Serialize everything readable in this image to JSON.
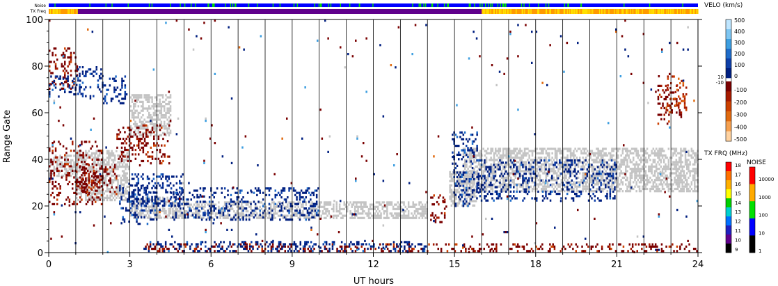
{
  "chart_data": {
    "type": "heatmap",
    "title": "",
    "xlabel": "UT hours",
    "ylabel": "Range Gate",
    "xlim": [
      0,
      24
    ],
    "ylim": [
      0,
      100
    ],
    "xticks": [
      "0",
      "3",
      "6",
      "9",
      "12",
      "15",
      "18",
      "21",
      "24"
    ],
    "yticks": [
      "0",
      "20",
      "40",
      "60",
      "80",
      "100"
    ],
    "top_bars": {
      "noise_label": "Noise",
      "txfreq_label": "TX Freq"
    },
    "velocity_colorbar": {
      "title": "VELO (km/s)",
      "labels_positive": [
        "500",
        "400",
        "300",
        "200",
        "100",
        "0"
      ],
      "labels_negative": [
        "-100",
        "-200",
        "-300",
        "-400",
        "-500"
      ],
      "mid_labels": [
        "10",
        "-10"
      ],
      "colors_positive": [
        "#bfe6ff",
        "#7ec6f2",
        "#3d9ee0",
        "#1f6cc9",
        "#0e3fa8",
        "#001f80"
      ],
      "colors_negative": [
        "#7a0000",
        "#a61a00",
        "#cc4000",
        "#e06a10",
        "#f5a050",
        "#ffd2a0"
      ],
      "ground_scatter_color": "#c4c4c4"
    },
    "txfreq_colorbar": {
      "title": "TX FRQ (MHz)",
      "labels": [
        "18",
        "17",
        "16",
        "15",
        "14",
        "13",
        "12",
        "11",
        "10",
        "9"
      ],
      "colors": [
        "#ff0000",
        "#ff7000",
        "#ffb000",
        "#ffff00",
        "#00d000",
        "#00d0d0",
        "#0070ff",
        "#2020c0",
        "#60008c",
        "#000000"
      ]
    },
    "noise_colorbar": {
      "title": "NOISE",
      "labels": [
        "10000",
        "1000",
        "100",
        "10",
        "1"
      ],
      "colors": [
        "#ff0000",
        "#ffaa00",
        "#00e000",
        "#0000ff",
        "#000000"
      ]
    },
    "regions": [
      {
        "kind": "ground",
        "t0": 0.0,
        "t1": 1.1,
        "g0": 32,
        "g1": 42
      },
      {
        "kind": "ground",
        "t0": 1.0,
        "t1": 3.0,
        "g0": 22,
        "g1": 44
      },
      {
        "kind": "ground",
        "t0": 3.0,
        "t1": 4.5,
        "g0": 14,
        "g1": 24
      },
      {
        "kind": "ground",
        "t0": 4.5,
        "t1": 14.0,
        "g0": 14,
        "g1": 22
      },
      {
        "kind": "ground",
        "t0": 3.0,
        "t1": 4.5,
        "g0": 50,
        "g1": 68
      },
      {
        "kind": "ground",
        "t0": 15.3,
        "t1": 24.0,
        "g0": 26,
        "g1": 45
      },
      {
        "kind": "ground",
        "t0": 14.8,
        "t1": 15.8,
        "g0": 20,
        "g1": 35
      },
      {
        "kind": "neg",
        "t0": 0.0,
        "t1": 2.0,
        "g0": 20,
        "g1": 48
      },
      {
        "kind": "neg",
        "t0": 1.0,
        "t1": 2.5,
        "g0": 25,
        "g1": 38
      },
      {
        "kind": "neg",
        "t0": 2.5,
        "t1": 4.5,
        "g0": 38,
        "g1": 55
      },
      {
        "kind": "neg",
        "t0": 3.5,
        "t1": 24.0,
        "g0": 0,
        "g1": 4
      },
      {
        "kind": "neg",
        "t0": 14.1,
        "t1": 14.7,
        "g0": 13,
        "g1": 25
      },
      {
        "kind": "neg",
        "t0": 22.5,
        "t1": 23.4,
        "g0": 55,
        "g1": 72
      },
      {
        "kind": "neg",
        "t0": 0.0,
        "t1": 1.1,
        "g0": 70,
        "g1": 88
      },
      {
        "kind": "pos",
        "t0": 0.0,
        "t1": 1.0,
        "g0": 66,
        "g1": 76
      },
      {
        "kind": "pos",
        "t0": 1.0,
        "t1": 2.0,
        "g0": 66,
        "g1": 80
      },
      {
        "kind": "pos",
        "t0": 2.0,
        "t1": 2.9,
        "g0": 64,
        "g1": 76
      },
      {
        "kind": "pos",
        "t0": 2.6,
        "t1": 4.0,
        "g0": 12,
        "g1": 30
      },
      {
        "kind": "pos",
        "t0": 3.0,
        "t1": 5.0,
        "g0": 20,
        "g1": 34
      },
      {
        "kind": "pos",
        "t0": 4.5,
        "t1": 10.0,
        "g0": 14,
        "g1": 28
      },
      {
        "kind": "pos",
        "t0": 14.9,
        "t1": 15.9,
        "g0": 20,
        "g1": 52
      },
      {
        "kind": "pos",
        "t0": 15.8,
        "t1": 21.0,
        "g0": 22,
        "g1": 40
      },
      {
        "kind": "pos",
        "t0": 3.5,
        "t1": 14.0,
        "g0": 0,
        "g1": 5
      },
      {
        "kind": "posTail",
        "t0": 22.8,
        "t1": 23.6,
        "g0": 60,
        "g1": 76
      },
      {
        "kind": "sparse",
        "t0": 0.0,
        "t1": 24.0,
        "g0": 0,
        "g1": 100
      }
    ]
  }
}
